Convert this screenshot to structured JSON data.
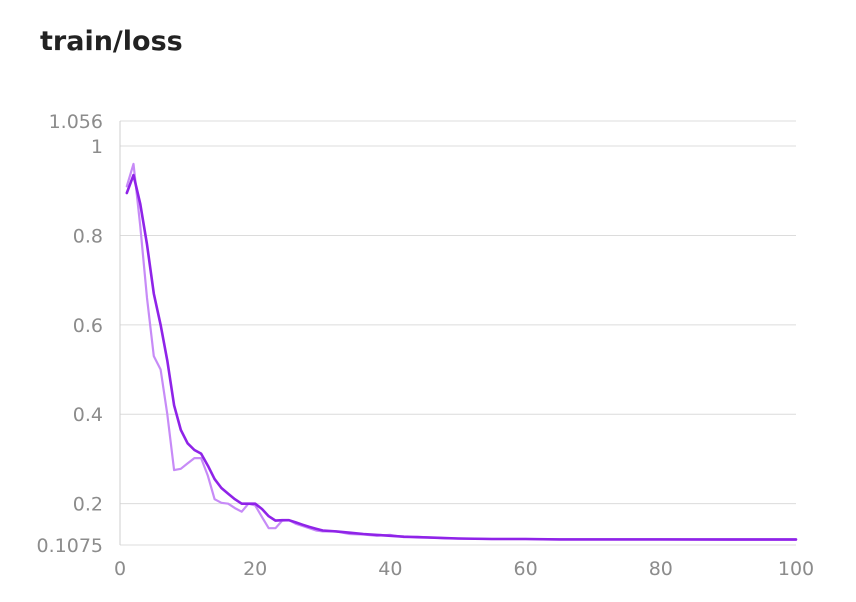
{
  "chart_data": {
    "type": "line",
    "title": "train/loss",
    "xlabel": "",
    "ylabel": "",
    "xlim": [
      0,
      100
    ],
    "ylim": [
      0.1075,
      1.056
    ],
    "grid": true,
    "x_ticks": [
      "0",
      "20",
      "40",
      "60",
      "80",
      "100"
    ],
    "y_ticks": [
      "0.1075",
      "0.2",
      "0.4",
      "0.6",
      "0.8",
      "1",
      "1.056"
    ],
    "series": [
      {
        "style": "raw",
        "color": "#c78bf7",
        "x": [
          1,
          2,
          3,
          4,
          5,
          6,
          7,
          8,
          9,
          10,
          11,
          12,
          13,
          14,
          15,
          16,
          17,
          18,
          19,
          20,
          21,
          22,
          23,
          24,
          25,
          26,
          27,
          28,
          29,
          30,
          32,
          34,
          36,
          38,
          40,
          42,
          44,
          46,
          48,
          50,
          55,
          60,
          65,
          70,
          75,
          80,
          90,
          100
        ],
        "y": [
          0.91,
          0.96,
          0.82,
          0.66,
          0.53,
          0.5,
          0.4,
          0.275,
          0.278,
          0.29,
          0.302,
          0.302,
          0.262,
          0.21,
          0.202,
          0.2,
          0.19,
          0.182,
          0.2,
          0.196,
          0.17,
          0.145,
          0.145,
          0.162,
          0.163,
          0.155,
          0.15,
          0.145,
          0.14,
          0.138,
          0.138,
          0.132,
          0.131,
          0.128,
          0.13,
          0.125,
          0.126,
          0.124,
          0.123,
          0.122,
          0.121,
          0.121,
          0.12,
          0.12,
          0.12,
          0.12,
          0.119,
          0.119
        ]
      },
      {
        "style": "smoothed",
        "color": "#8f23e8",
        "x": [
          1,
          2,
          3,
          4,
          5,
          6,
          7,
          8,
          9,
          10,
          11,
          12,
          13,
          14,
          15,
          16,
          17,
          18,
          19,
          20,
          21,
          22,
          23,
          24,
          25,
          26,
          27,
          28,
          29,
          30,
          32,
          34,
          36,
          38,
          40,
          42,
          44,
          46,
          48,
          50,
          55,
          60,
          65,
          70,
          75,
          80,
          90,
          100
        ],
        "y": [
          0.895,
          0.935,
          0.87,
          0.78,
          0.67,
          0.6,
          0.52,
          0.42,
          0.365,
          0.335,
          0.32,
          0.312,
          0.285,
          0.255,
          0.235,
          0.222,
          0.21,
          0.2,
          0.2,
          0.2,
          0.188,
          0.172,
          0.162,
          0.163,
          0.163,
          0.158,
          0.153,
          0.148,
          0.144,
          0.14,
          0.138,
          0.135,
          0.132,
          0.13,
          0.128,
          0.126,
          0.125,
          0.124,
          0.123,
          0.122,
          0.121,
          0.121,
          0.12,
          0.12,
          0.12,
          0.12,
          0.12,
          0.12
        ]
      }
    ]
  }
}
